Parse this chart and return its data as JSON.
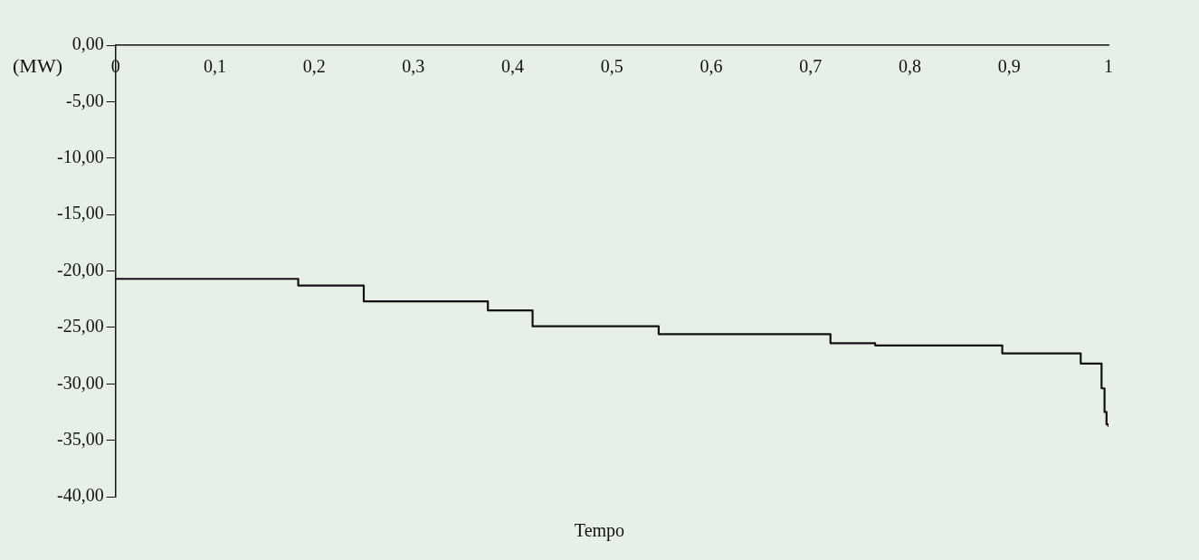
{
  "chart_data": {
    "type": "step",
    "xlabel": "Tempo",
    "ylabel": "(MW)",
    "series": [
      {
        "color": "#111111",
        "x": [
          0,
          0.184,
          0.25,
          0.375,
          0.42,
          0.547,
          0.72,
          0.765,
          0.893,
          0.972,
          0.993,
          0.996,
          0.998,
          1
        ],
        "values": [
          -20.7,
          -21.3,
          -22.7,
          -23.5,
          -24.9,
          -25.6,
          -26.4,
          -26.6,
          -27.3,
          -28.2,
          -30.4,
          -32.5,
          -33.6,
          -33.8
        ]
      }
    ],
    "xlim": [
      0,
      1
    ],
    "xticks": [
      {
        "value": 0,
        "label": "0"
      },
      {
        "value": 0.1,
        "label": "0,1"
      },
      {
        "value": 0.2,
        "label": "0,2"
      },
      {
        "value": 0.3,
        "label": "0,3"
      },
      {
        "value": 0.4,
        "label": "0,4"
      },
      {
        "value": 0.5,
        "label": "0,5"
      },
      {
        "value": 0.6,
        "label": "0,6"
      },
      {
        "value": 0.7,
        "label": "0,7"
      },
      {
        "value": 0.8,
        "label": "0,8"
      },
      {
        "value": 0.9,
        "label": "0,9"
      },
      {
        "value": 1,
        "label": "1"
      }
    ],
    "ylim": [
      -40,
      0
    ],
    "yticks": [
      {
        "value": 0,
        "label": "0,00"
      },
      {
        "value": -5,
        "label": "-5,00"
      },
      {
        "value": -10,
        "label": "-10,00"
      },
      {
        "value": -15,
        "label": "-15,00"
      },
      {
        "value": -20,
        "label": "-20,00"
      },
      {
        "value": -25,
        "label": "-25,00"
      },
      {
        "value": -30,
        "label": "-30,00"
      },
      {
        "value": -35,
        "label": "-35,00"
      },
      {
        "value": -40,
        "label": "-40,00"
      }
    ],
    "grid": false,
    "legend": false,
    "marker": "none",
    "line_style": "solid"
  }
}
